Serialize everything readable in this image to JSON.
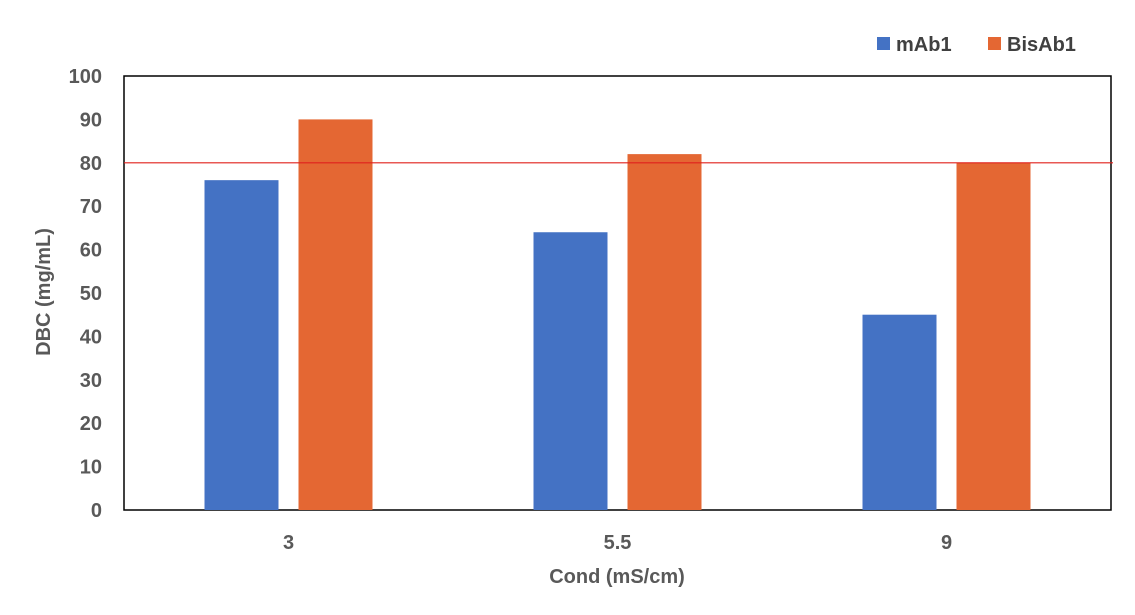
{
  "chart_data": {
    "type": "bar",
    "title": "",
    "xlabel": "Cond (mS/cm)",
    "ylabel": "DBC (mg/mL)",
    "categories": [
      "3",
      "5.5",
      "9"
    ],
    "series": [
      {
        "name": "mAb1",
        "values": [
          76,
          64,
          45
        ],
        "color": "#4472C4"
      },
      {
        "name": "BisAb1",
        "values": [
          90,
          82,
          80
        ],
        "color": "#E46733"
      }
    ],
    "ylim": [
      0,
      100
    ],
    "yticks": [
      "0",
      "10",
      "20",
      "30",
      "40",
      "50",
      "60",
      "70",
      "80",
      "90",
      "100"
    ],
    "reference_line": {
      "value": 80,
      "color": "#E0201C"
    },
    "grid": false,
    "legend": "top-right",
    "frame_color": "#000000"
  }
}
